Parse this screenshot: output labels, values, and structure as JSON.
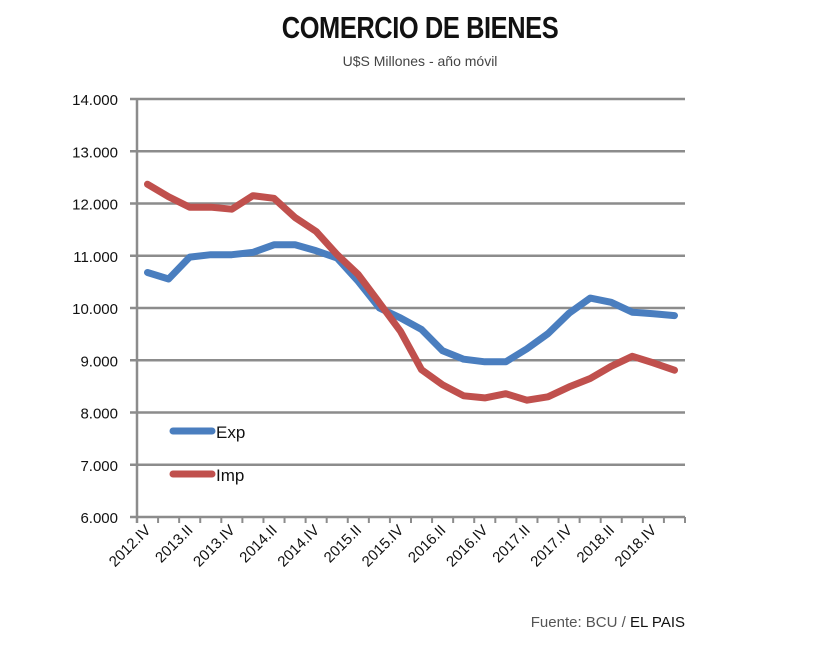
{
  "chart_data": {
    "type": "line",
    "title": "COMERCIO DE BIENES",
    "subtitle": "U$S Millones - año móvil",
    "source_prefix": "Fuente: BCU /",
    "source_brand": "EL PAIS",
    "xlabel": "",
    "ylabel": "",
    "ylim": [
      6000,
      14000
    ],
    "yticks": [
      "6.000",
      "7.000",
      "8.000",
      "9.000",
      "10.000",
      "11.000",
      "12.000",
      "13.000",
      "14.000"
    ],
    "ytick_values": [
      6000,
      7000,
      8000,
      9000,
      10000,
      11000,
      12000,
      13000,
      14000
    ],
    "grid": true,
    "legend_position": "bottom-left",
    "categories": [
      "2012.IV",
      "2013.I",
      "2013.II",
      "2013.III",
      "2013.IV",
      "2014.I",
      "2014.II",
      "2014.III",
      "2014.IV",
      "2015.I",
      "2015.II",
      "2015.III",
      "2015.IV",
      "2016.I",
      "2016.II",
      "2016.III",
      "2016.IV",
      "2017.I",
      "2017.II",
      "2017.III",
      "2017.IV",
      "2018.I",
      "2018.II",
      "2018.III",
      "2018.IV",
      "2019.I"
    ],
    "xtick_labels": [
      "2012.IV",
      "2013.II",
      "2013.IV",
      "2014.II",
      "2014.IV",
      "2015.II",
      "2015.IV",
      "2016.II",
      "2016.IV",
      "2017.II",
      "2017.IV",
      "2018.II",
      "2018.IV"
    ],
    "series": [
      {
        "name": "Exp",
        "color": "#4a7ebf",
        "values": [
          10680,
          10555,
          10975,
          11020,
          11020,
          11065,
          11210,
          11210,
          11095,
          10955,
          10510,
          10000,
          9810,
          9590,
          9180,
          9020,
          8970,
          8970,
          9220,
          9510,
          9900,
          10190,
          10110,
          9920,
          9890,
          9855
        ]
      },
      {
        "name": "Imp",
        "color": "#c0504d",
        "values": [
          12370,
          12130,
          11930,
          11930,
          11890,
          12150,
          12100,
          11730,
          11465,
          11020,
          10640,
          10100,
          9555,
          8820,
          8530,
          8320,
          8280,
          8360,
          8235,
          8300,
          8490,
          8650,
          8885,
          9075,
          8950,
          8810
        ]
      }
    ]
  }
}
